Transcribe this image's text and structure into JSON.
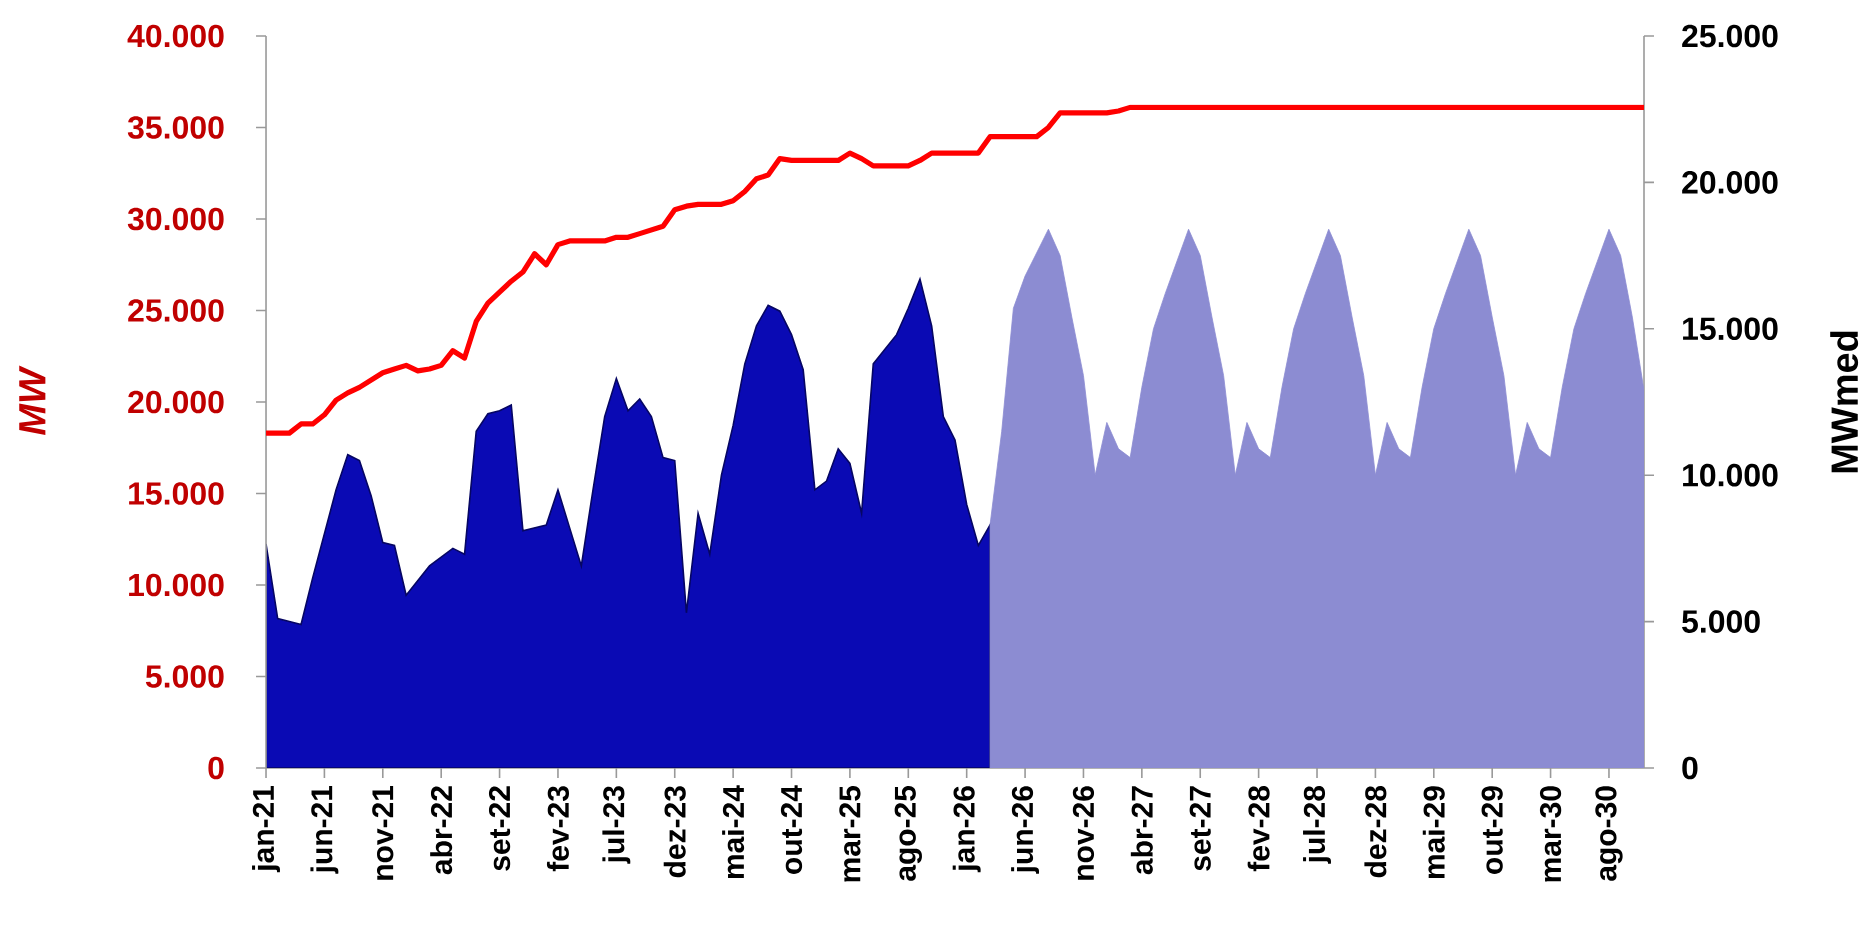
{
  "chart_data": {
    "type": "line",
    "categories": [
      "jan-21",
      null,
      null,
      null,
      null,
      "jun-21",
      null,
      null,
      null,
      null,
      "nov-21",
      null,
      null,
      null,
      null,
      "abr-22",
      null,
      null,
      null,
      null,
      "set-22",
      null,
      null,
      null,
      null,
      "fev-23",
      null,
      null,
      null,
      null,
      "jul-23",
      null,
      null,
      null,
      null,
      "dez-23",
      null,
      null,
      null,
      null,
      "mai-24",
      null,
      null,
      null,
      null,
      "out-24",
      null,
      null,
      null,
      null,
      "mar-25",
      null,
      null,
      null,
      null,
      "ago-25",
      null,
      null,
      null,
      null,
      "jan-26",
      null,
      null,
      null,
      null,
      "jun-26",
      null,
      null,
      null,
      null,
      "nov-26",
      null,
      null,
      null,
      null,
      "abr-27",
      null,
      null,
      null,
      null,
      "set-27",
      null,
      null,
      null,
      null,
      "fev-28",
      null,
      null,
      null,
      null,
      "jul-28",
      null,
      null,
      null,
      null,
      "dez-28",
      null,
      null,
      null,
      null,
      "mai-29",
      null,
      null,
      null,
      null,
      "out-29",
      null,
      null,
      null,
      null,
      "mar-30",
      null,
      null,
      null,
      null,
      "ago-30",
      null,
      null,
      null
    ],
    "series": [
      {
        "type": "area",
        "axis": "y2",
        "color": "#0a0ab4",
        "values": [
          7650,
          5100,
          5000,
          4900,
          6500,
          8000,
          9500,
          10700,
          10500,
          9300,
          7700,
          7600,
          5900,
          6400,
          6900,
          7200,
          7500,
          7300,
          11500,
          12100,
          12200,
          12400,
          8100,
          8200,
          8300,
          9500,
          8200,
          6900,
          9500,
          12000,
          13300,
          12200,
          12600,
          12000,
          10600,
          10500,
          5300,
          8700,
          7300,
          10000,
          11700,
          13800,
          15100,
          15800,
          15600,
          14800,
          13600,
          9500,
          9800,
          10900,
          10400,
          8700,
          13800,
          14300,
          14800,
          15700,
          16700,
          15100,
          12000,
          11200,
          9000,
          7600,
          8300,
          null,
          null,
          null,
          null,
          null,
          null,
          null,
          null,
          null,
          null,
          null,
          null,
          null,
          null,
          null,
          null,
          null,
          null,
          null,
          null,
          null,
          null,
          null,
          null,
          null,
          null,
          null,
          null,
          null,
          null,
          null,
          null,
          null,
          null,
          null,
          null,
          null,
          null,
          null,
          null,
          null,
          null,
          null,
          null,
          null,
          null,
          null,
          null,
          null,
          null,
          null,
          null,
          null,
          null,
          null,
          null
        ]
      },
      {
        "type": "area",
        "axis": "y2",
        "color": "#8c8cd2",
        "values": [
          null,
          null,
          null,
          null,
          null,
          null,
          null,
          null,
          null,
          null,
          null,
          null,
          null,
          null,
          null,
          null,
          null,
          null,
          null,
          null,
          null,
          null,
          null,
          null,
          null,
          null,
          null,
          null,
          null,
          null,
          null,
          null,
          null,
          null,
          null,
          null,
          null,
          null,
          null,
          null,
          null,
          null,
          null,
          null,
          null,
          null,
          null,
          null,
          null,
          null,
          null,
          null,
          null,
          null,
          null,
          null,
          null,
          null,
          null,
          null,
          null,
          null,
          8300,
          11500,
          15700,
          16800,
          17600,
          18400,
          17500,
          15400,
          13400,
          10000,
          11800,
          10900,
          10600,
          13000,
          15000,
          16200,
          17300,
          18400,
          17500,
          15400,
          13400,
          10000,
          11800,
          10900,
          10600,
          13000,
          15000,
          16200,
          17300,
          18400,
          17500,
          15400,
          13400,
          10000,
          11800,
          10900,
          10600,
          13000,
          15000,
          16200,
          17300,
          18400,
          17500,
          15400,
          13400,
          10000,
          11800,
          10900,
          10600,
          13000,
          15000,
          16200,
          17300,
          18400,
          17500,
          15400,
          12900
        ]
      },
      {
        "axis": "y",
        "color": "#ff0000",
        "values": [
          18300,
          18300,
          18300,
          18800,
          18800,
          19300,
          20100,
          20500,
          20800,
          21200,
          21600,
          21800,
          22000,
          21700,
          21800,
          22000,
          22800,
          22400,
          24400,
          25400,
          26000,
          26600,
          27100,
          28100,
          27500,
          28600,
          28800,
          28800,
          28800,
          28800,
          29000,
          29000,
          29200,
          29400,
          29600,
          30500,
          30700,
          30800,
          30800,
          30800,
          31000,
          31500,
          32200,
          32400,
          33300,
          33200,
          33200,
          33200,
          33200,
          33200,
          33600,
          33300,
          32900,
          32900,
          32900,
          32900,
          33200,
          33600,
          33600,
          33600,
          33600,
          33600,
          34500,
          34500,
          34500,
          34500,
          34500,
          35000,
          35800,
          35800,
          35800,
          35800,
          35800,
          35900,
          36100,
          36100,
          36100,
          36100,
          36100,
          36100,
          36100,
          36100,
          36100,
          36100,
          36100,
          36100,
          36100,
          36100,
          36100,
          36100,
          36100,
          36100,
          36100,
          36100,
          36100,
          36100,
          36100,
          36100,
          36100,
          36100,
          36100,
          36100,
          36100,
          36100,
          36100,
          36100,
          36100,
          36100,
          36100,
          36100,
          36100,
          36100,
          36100,
          36100,
          36100,
          36100,
          36100,
          36100,
          36100
        ]
      }
    ],
    "ylabel": "MW",
    "y2label": "MWmed",
    "ylim": [
      0,
      40000
    ],
    "yticks": [
      0,
      {
        "value": 5000,
        "label": "5.000"
      },
      {
        "value": 10000,
        "label": "10.000"
      },
      {
        "value": 15000,
        "label": "15.000"
      },
      {
        "value": 20000,
        "label": "20.000"
      },
      {
        "value": 25000,
        "label": "25.000"
      },
      {
        "value": 30000,
        "label": "30.000"
      },
      {
        "value": 35000,
        "label": "35.000"
      },
      {
        "value": 40000,
        "label": "40.000"
      }
    ],
    "y2lim": [
      0,
      25000
    ],
    "y2ticks": [
      0,
      {
        "value": 5000,
        "label": "5.000"
      },
      {
        "value": 10000,
        "label": "10.000"
      },
      {
        "value": 15000,
        "label": "15.000"
      },
      {
        "value": 20000,
        "label": "20.000"
      },
      {
        "value": 25000,
        "label": "25.000"
      }
    ]
  }
}
